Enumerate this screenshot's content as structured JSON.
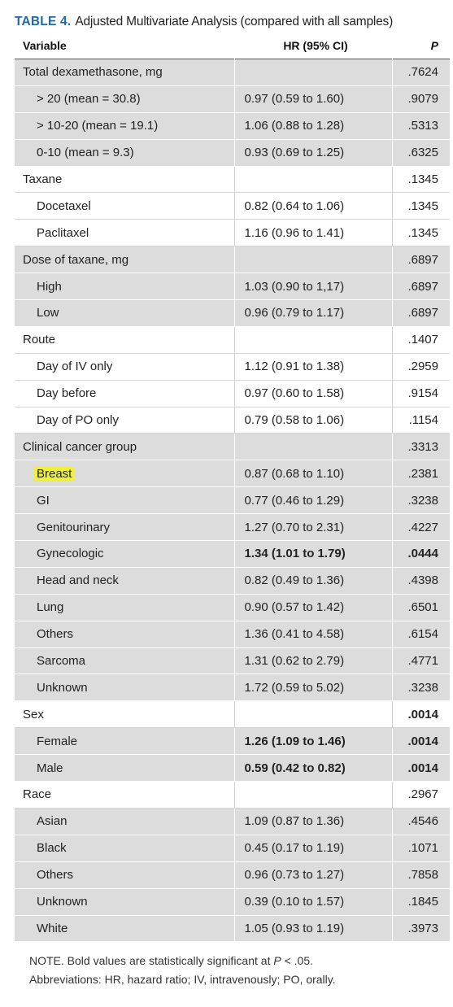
{
  "caption": {
    "label": "TABLE 4.",
    "title": "Adjusted Multivariate Analysis (compared with all samples)"
  },
  "columns": {
    "variable": "Variable",
    "hr": "HR (95% CI)",
    "p": "P"
  },
  "rows": [
    {
      "variable": "Total dexamethasone, mg",
      "hr": "",
      "p": ".7624"
    },
    {
      "variable": "> 20 (mean = 30.8)",
      "hr": "0.97 (0.59 to 1.60)",
      "p": ".9079"
    },
    {
      "variable": "> 10-20 (mean = 19.1)",
      "hr": "1.06 (0.88 to 1.28)",
      "p": ".5313"
    },
    {
      "variable": "0-10 (mean = 9.3)",
      "hr": "0.93 (0.69 to 1.25)",
      "p": ".6325"
    },
    {
      "variable": "Taxane",
      "hr": "",
      "p": ".1345"
    },
    {
      "variable": "Docetaxel",
      "hr": "0.82 (0.64 to 1.06)",
      "p": ".1345"
    },
    {
      "variable": "Paclitaxel",
      "hr": "1.16 (0.96 to 1.41)",
      "p": ".1345"
    },
    {
      "variable": "Dose of taxane, mg",
      "hr": "",
      "p": ".6897"
    },
    {
      "variable": "High",
      "hr": "1.03 (0.90 to 1,17)",
      "p": ".6897"
    },
    {
      "variable": "Low",
      "hr": "0.96 (0.79 to 1.17)",
      "p": ".6897"
    },
    {
      "variable": "Route",
      "hr": "",
      "p": ".1407"
    },
    {
      "variable": "Day of IV only",
      "hr": "1.12 (0.91 to 1.38)",
      "p": ".2959"
    },
    {
      "variable": "Day before",
      "hr": "0.97 (0.60 to 1.58)",
      "p": ".9154"
    },
    {
      "variable": "Day of PO only",
      "hr": "0.79 (0.58 to 1.06)",
      "p": ".1154"
    },
    {
      "variable": "Clinical cancer group",
      "hr": "",
      "p": ".3313"
    },
    {
      "variable": "Breast",
      "hr": "0.87 (0.68 to 1.10)",
      "p": ".2381"
    },
    {
      "variable": "GI",
      "hr": "0.77 (0.46 to 1.29)",
      "p": ".3238"
    },
    {
      "variable": "Genitourinary",
      "hr": "1.27 (0.70 to 2.31)",
      "p": ".4227"
    },
    {
      "variable": "Gynecologic",
      "hr": "1.34 (1.01 to 1.79)",
      "p": ".0444"
    },
    {
      "variable": "Head and neck",
      "hr": "0.82 (0.49 to 1.36)",
      "p": ".4398"
    },
    {
      "variable": "Lung",
      "hr": "0.90 (0.57 to 1.42)",
      "p": ".6501"
    },
    {
      "variable": "Others",
      "hr": "1.36 (0.41 to 4.58)",
      "p": ".6154"
    },
    {
      "variable": "Sarcoma",
      "hr": "1.31 (0.62 to 2.79)",
      "p": ".4771"
    },
    {
      "variable": "Unknown",
      "hr": "1.72 (0.59 to 5.02)",
      "p": ".3238"
    },
    {
      "variable": "Sex",
      "hr": "",
      "p": ".0014"
    },
    {
      "variable": "Female",
      "hr": "1.26 (1.09 to 1.46)",
      "p": ".0014"
    },
    {
      "variable": "Male",
      "hr": "0.59 (0.42 to 0.82)",
      "p": ".0014"
    },
    {
      "variable": "Race",
      "hr": "",
      "p": ".2967"
    },
    {
      "variable": "Asian",
      "hr": "1.09 (0.87 to 1.36)",
      "p": ".4546"
    },
    {
      "variable": "Black",
      "hr": "0.45 (0.17 to 1.19)",
      "p": ".1071"
    },
    {
      "variable": "Others",
      "hr": "0.96 (0.73 to 1.27)",
      "p": ".7858"
    },
    {
      "variable": "Unknown",
      "hr": "0.39 (0.10 to 1.57)",
      "p": ".1845"
    },
    {
      "variable": "White",
      "hr": "1.05 (0.93 to 1.19)",
      "p": ".3973"
    }
  ],
  "note": {
    "line1_prefix": "NOTE. Bold values are statistically significant at ",
    "line1_var": "P",
    "line1_suffix": " < .05.",
    "line2": "Abbreviations: HR, hazard ratio; IV, intravenously; PO, orally."
  }
}
